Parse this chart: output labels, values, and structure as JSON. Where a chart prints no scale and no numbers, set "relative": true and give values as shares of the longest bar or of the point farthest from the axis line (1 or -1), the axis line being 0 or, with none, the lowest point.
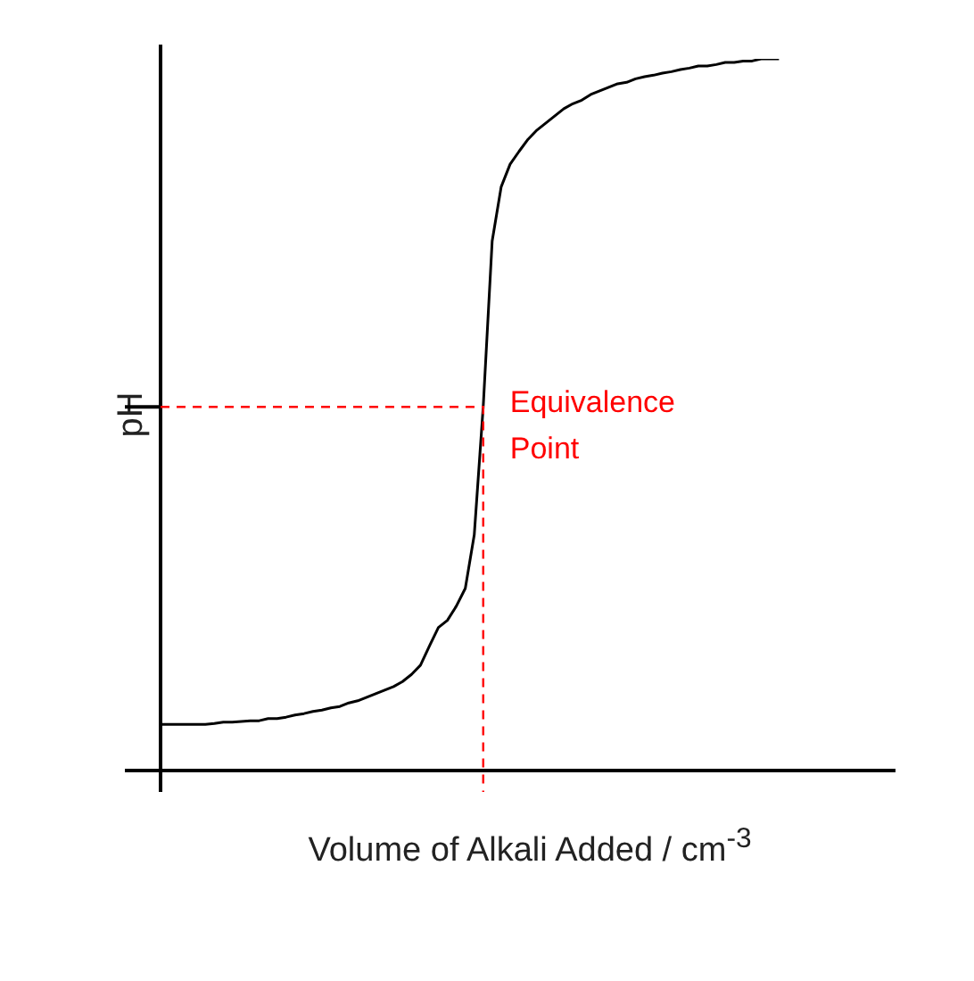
{
  "chart_data": {
    "type": "line",
    "relative": true,
    "ylabel": "pH",
    "xlabel": "Volume of Alkali Added / cm$^{-3}$",
    "categories": [
      null,
      null,
      null,
      null,
      null,
      null,
      null,
      null,
      null,
      null,
      null,
      null,
      null,
      null,
      null,
      null,
      null,
      null,
      null,
      null,
      null,
      null,
      null,
      null,
      null,
      null,
      null,
      null,
      null,
      null,
      null,
      null,
      null,
      null,
      null,
      null,
      null,
      null,
      null,
      null,
      null,
      null,
      null,
      null,
      null,
      null,
      null,
      null,
      null,
      null,
      null,
      null,
      null,
      null,
      null,
      null,
      null,
      null,
      null,
      null,
      null,
      null,
      null,
      null,
      null,
      null,
      null,
      null,
      null,
      null,
      null,
      null,
      null,
      null,
      null,
      null,
      null,
      null,
      null,
      null,
      null,
      null,
      null
    ],
    "series": [
      {
        "color": "#000000",
        "values": [
          0.065,
          0.065,
          0.065,
          0.065,
          0.065,
          0.065,
          0.066,
          0.068,
          0.068,
          0.069,
          0.07,
          0.07,
          0.073,
          0.073,
          0.075,
          0.078,
          0.08,
          0.083,
          0.085,
          0.088,
          0.09,
          0.095,
          0.098,
          0.103,
          0.108,
          0.113,
          0.118,
          0.125,
          0.135,
          0.148,
          0.175,
          0.201,
          0.211,
          0.231,
          0.256,
          0.331,
          0.511,
          0.744,
          0.82,
          0.852,
          0.87,
          0.887,
          0.9,
          0.91,
          0.92,
          0.93,
          0.937,
          0.942,
          0.95,
          0.955,
          0.96,
          0.965,
          0.967,
          0.972,
          0.975,
          0.977,
          0.98,
          0.982,
          0.985,
          0.987,
          0.99,
          0.99,
          0.992,
          0.995,
          0.995,
          0.997,
          0.997,
          1,
          1,
          1,
          null,
          null,
          null,
          null,
          null,
          null,
          null,
          null,
          null,
          null,
          null,
          null,
          null
        ]
      }
    ],
    "ref_lines": [
      {
        "axis": "y",
        "value": 0.511,
        "label": "Equivalence Point",
        "color": "#ff0000",
        "line_style": "dashed"
      }
    ],
    "grid": false,
    "legend": false
  }
}
